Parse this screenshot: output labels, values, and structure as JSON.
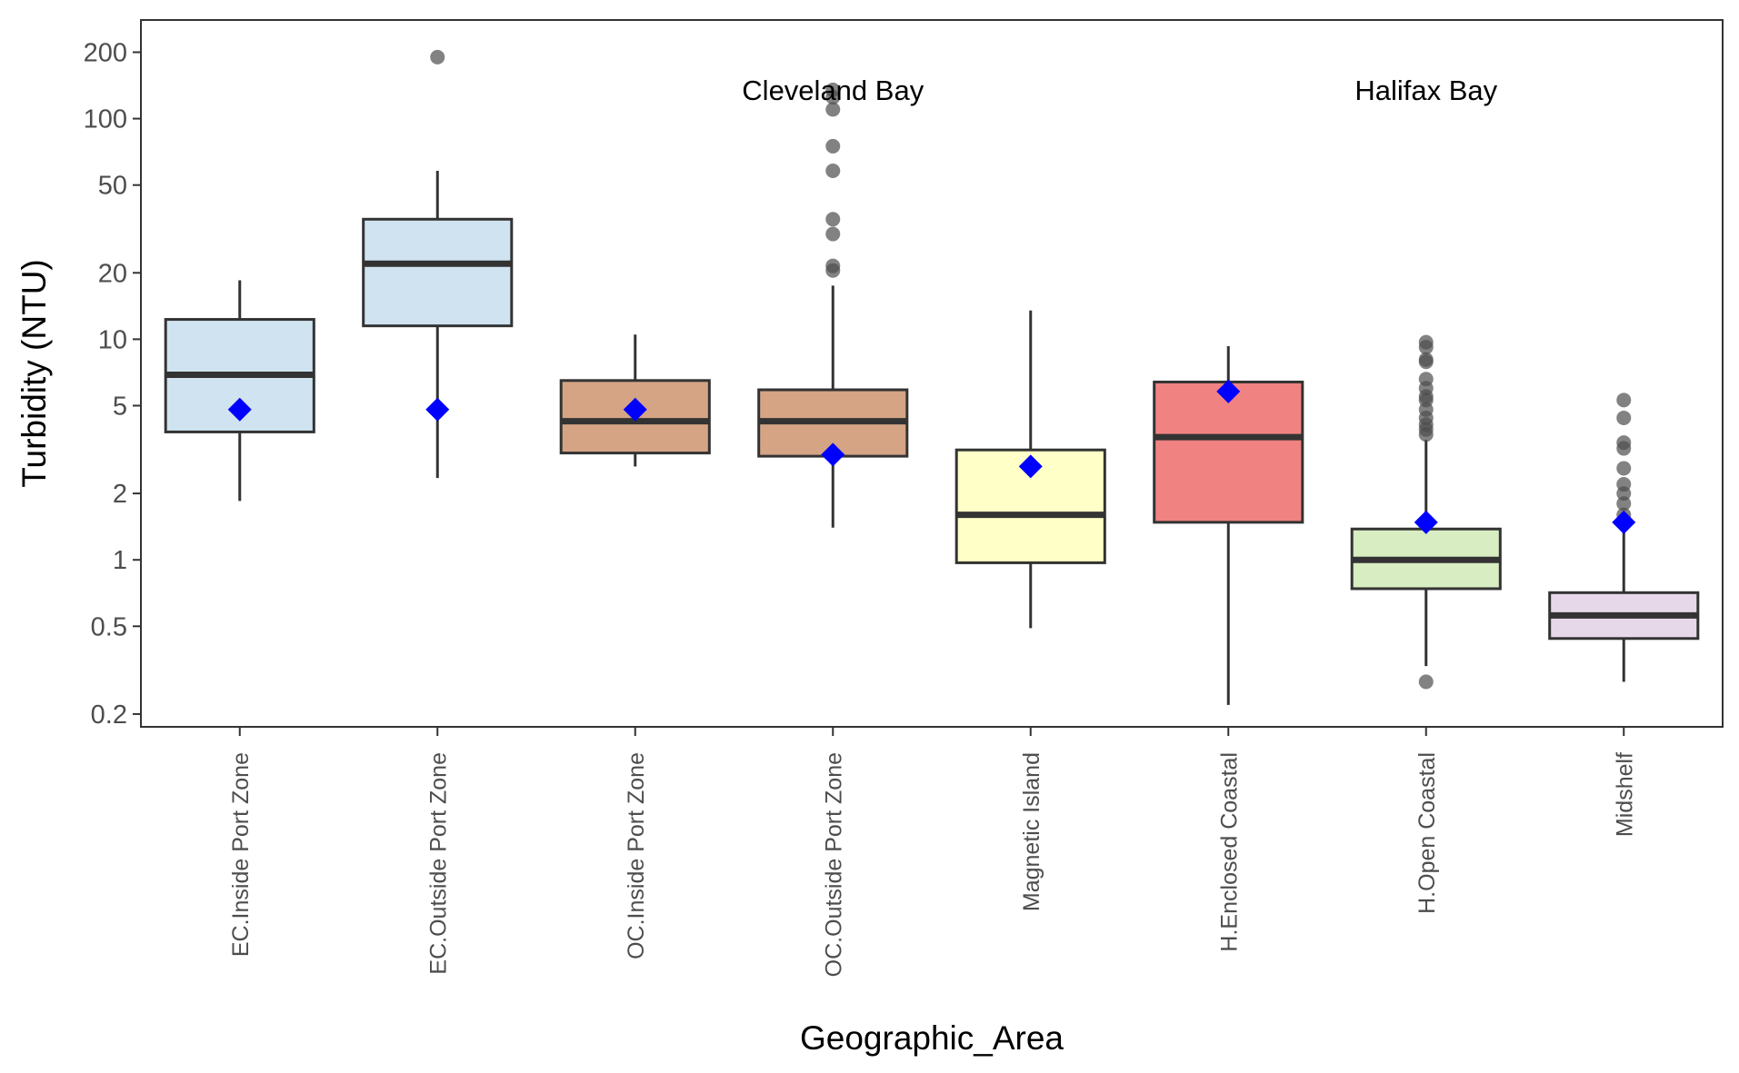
{
  "chart_data": {
    "type": "boxplot",
    "xlabel": "Geographic_Area",
    "ylabel": "Turbidity (NTU)",
    "y_scale": "log10",
    "ylim": [
      0.175,
      280
    ],
    "yticks": [
      0.2,
      0.5,
      1,
      2,
      5,
      10,
      20,
      50,
      100,
      200
    ],
    "ytick_labels": [
      "0.2",
      "0.5",
      "1",
      "2",
      "5",
      "10",
      "20",
      "50",
      "100",
      "200"
    ],
    "grid": false,
    "legend": "none",
    "annotations": [
      {
        "text": "Cleveland Bay",
        "x": 3.5,
        "y": 135
      },
      {
        "text": "Halifax Bay",
        "x": 6.5,
        "y": 135
      }
    ],
    "categories": [
      "EC.Inside Port Zone",
      "EC.Outside Port Zone",
      "OC.Inside Port Zone",
      "OC.Outside Port Zone",
      "Magnetic Island",
      "H.Enclosed Coastal",
      "H.Open Coastal",
      "Midshelf"
    ],
    "boxes": [
      {
        "category": "EC.Inside Port Zone",
        "whisker_low": 1.85,
        "q1": 3.8,
        "median": 6.9,
        "q3": 12.3,
        "whisker_high": 18.5,
        "mean": 4.8,
        "outliers": [],
        "fill": "#cfe3f0"
      },
      {
        "category": "EC.Outside Port Zone",
        "whisker_low": 2.35,
        "q1": 11.5,
        "median": 22,
        "q3": 35,
        "whisker_high": 58,
        "mean": 4.8,
        "outliers": [
          190
        ],
        "fill": "#cfe3f0"
      },
      {
        "category": "OC.Inside Port Zone",
        "whisker_low": 2.65,
        "q1": 3.05,
        "median": 4.25,
        "q3": 6.5,
        "whisker_high": 10.5,
        "mean": 4.8,
        "outliers": [],
        "fill": "#d4a485"
      },
      {
        "category": "OC.Outside Port Zone",
        "whisker_low": 1.4,
        "q1": 2.95,
        "median": 4.25,
        "q3": 5.9,
        "whisker_high": 17.5,
        "mean": 3.0,
        "outliers": [
          20.5,
          21.5,
          30,
          35,
          58,
          75,
          110,
          125,
          135
        ],
        "fill": "#d4a485"
      },
      {
        "category": "Magnetic Island",
        "whisker_low": 0.49,
        "q1": 0.97,
        "median": 1.6,
        "q3": 3.15,
        "whisker_high": 13.5,
        "mean": 2.65,
        "outliers": [],
        "fill": "#ffffc8"
      },
      {
        "category": "H.Enclosed Coastal",
        "whisker_low": 0.22,
        "q1": 1.48,
        "median": 3.6,
        "q3": 6.4,
        "whisker_high": 9.3,
        "mean": 5.8,
        "outliers": [],
        "fill": "#f08282"
      },
      {
        "category": "H.Open Coastal",
        "whisker_low": 0.33,
        "q1": 0.74,
        "median": 1.0,
        "q3": 1.38,
        "whisker_high": 3.5,
        "mean": 1.48,
        "outliers": [
          0.28,
          3.7,
          3.9,
          4.1,
          4.4,
          4.8,
          5.3,
          5.5,
          6.0,
          6.6,
          7.9,
          8.1,
          9.2,
          9.7
        ],
        "fill": "#d8edc2"
      },
      {
        "category": "Midshelf",
        "whisker_low": 0.28,
        "q1": 0.44,
        "median": 0.56,
        "q3": 0.71,
        "whisker_high": 1.45,
        "mean": 1.48,
        "outliers": [
          1.6,
          1.8,
          2.0,
          2.2,
          2.6,
          3.2,
          3.4,
          4.4,
          5.3
        ],
        "fill": "#e6d7e9"
      }
    ]
  }
}
